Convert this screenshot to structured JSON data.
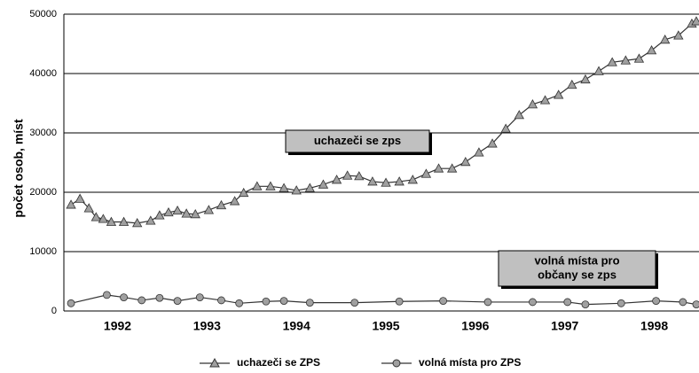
{
  "chart_data": {
    "type": "line",
    "y_label": "počet osob, míst",
    "ylim": [
      0,
      50000
    ],
    "yticks": [
      0,
      10000,
      20000,
      30000,
      40000,
      50000
    ],
    "grid": true,
    "xlim": [
      1991.9,
      1999.0
    ],
    "xticks": [
      {
        "value": 1992.5,
        "label": "1992"
      },
      {
        "value": 1993.5,
        "label": "1993"
      },
      {
        "value": 1994.5,
        "label": "1994"
      },
      {
        "value": 1995.5,
        "label": "1995"
      },
      {
        "value": 1996.5,
        "label": "1996"
      },
      {
        "value": 1997.5,
        "label": "1997"
      },
      {
        "value": 1998.5,
        "label": "1998"
      }
    ],
    "legend": "bottom",
    "annotations": [
      {
        "lines": [
          "uchazeči se zps"
        ]
      },
      {
        "lines": [
          "volná místa pro",
          "občany se zps"
        ]
      }
    ],
    "series": [
      {
        "name": "uchazeči se ZPS",
        "color": "#a0a0a0",
        "marker": "triangle",
        "x": [
          1991.98,
          1992.08,
          1992.18,
          1992.26,
          1992.34,
          1992.43,
          1992.57,
          1992.72,
          1992.87,
          1992.97,
          1993.07,
          1993.17,
          1993.27,
          1993.37,
          1993.52,
          1993.66,
          1993.81,
          1993.91,
          1994.06,
          1994.21,
          1994.36,
          1994.5,
          1994.65,
          1994.8,
          1994.95,
          1995.07,
          1995.2,
          1995.35,
          1995.5,
          1995.65,
          1995.8,
          1995.95,
          1996.09,
          1996.24,
          1996.39,
          1996.54,
          1996.69,
          1996.84,
          1996.99,
          1997.14,
          1997.28,
          1997.43,
          1997.58,
          1997.73,
          1997.88,
          1998.03,
          1998.18,
          1998.33,
          1998.47,
          1998.62,
          1998.77,
          1998.92,
          1998.97
        ],
        "values": [
          17900,
          18900,
          17300,
          15800,
          15500,
          15000,
          15000,
          14800,
          15200,
          16100,
          16600,
          16900,
          16400,
          16300,
          17000,
          17800,
          18500,
          19900,
          21000,
          21000,
          20700,
          20300,
          20700,
          21300,
          22100,
          22800,
          22700,
          21800,
          21600,
          21800,
          22100,
          23100,
          24000,
          24000,
          25100,
          26700,
          28200,
          30700,
          33000,
          34800,
          35500,
          36400,
          38100,
          39000,
          40400,
          41900,
          42200,
          42500,
          43900,
          45700,
          46400,
          48400,
          48800
        ]
      },
      {
        "name": "volná místa pro ZPS",
        "color": "#a0a0a0",
        "marker": "circle",
        "x": [
          1991.98,
          1992.38,
          1992.57,
          1992.77,
          1992.97,
          1993.17,
          1993.42,
          1993.66,
          1993.86,
          1994.16,
          1994.36,
          1994.65,
          1995.15,
          1995.65,
          1996.14,
          1996.64,
          1997.14,
          1997.53,
          1997.73,
          1998.13,
          1998.52,
          1998.82,
          1998.97
        ],
        "values": [
          1300,
          2700,
          2300,
          1800,
          2200,
          1700,
          2300,
          1800,
          1300,
          1600,
          1700,
          1400,
          1400,
          1600,
          1700,
          1500,
          1500,
          1500,
          1100,
          1300,
          1700,
          1500,
          1100
        ]
      }
    ]
  }
}
